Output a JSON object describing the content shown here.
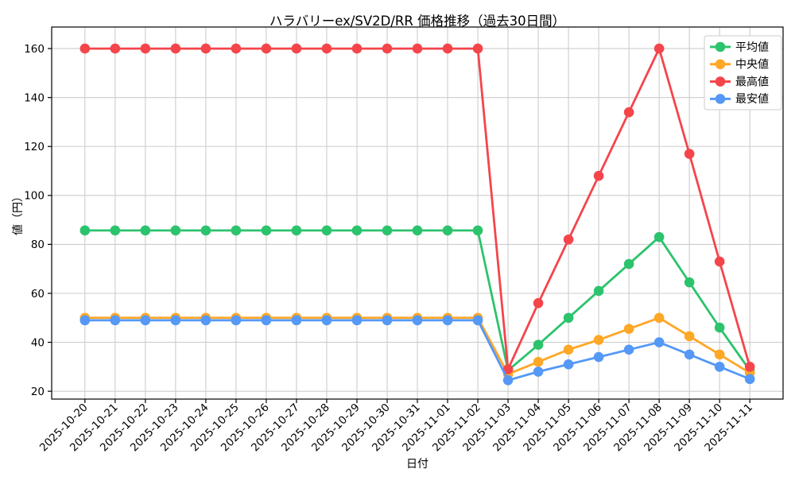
{
  "figure": {
    "title": "ハラバリーex/SV2D/RR 価格推移（過去30日間）",
    "xlabel": "日付",
    "ylabel": "値（円）"
  },
  "chart_data": {
    "type": "line",
    "title": "ハラバリーex/SV2D/RR 価格推移（過去30日間）",
    "xlabel": "日付",
    "ylabel": "値（円）",
    "grid": true,
    "legend_position": "upper right",
    "ylim": [
      16.8,
      168.8
    ],
    "yticks": [
      20,
      40,
      60,
      80,
      100,
      120,
      140,
      160
    ],
    "x": [
      "2025-10-20",
      "2025-10-21",
      "2025-10-22",
      "2025-10-23",
      "2025-10-24",
      "2025-10-25",
      "2025-10-26",
      "2025-10-27",
      "2025-10-28",
      "2025-10-29",
      "2025-10-30",
      "2025-10-31",
      "2025-11-01",
      "2025-11-02",
      "2025-11-03",
      "2025-11-04",
      "2025-11-05",
      "2025-11-06",
      "2025-11-07",
      "2025-11-08",
      "2025-11-09",
      "2025-11-10",
      "2025-11-11"
    ],
    "series": [
      {
        "key": "average",
        "name": "平均値",
        "color": "#2cc36d",
        "values": [
          85.7,
          85.7,
          85.7,
          85.7,
          85.7,
          85.7,
          85.7,
          85.7,
          85.7,
          85.7,
          85.7,
          85.7,
          85.7,
          85.7,
          28.5,
          39,
          50,
          61,
          72,
          83,
          64.5,
          46,
          28.5
        ]
      },
      {
        "key": "median",
        "name": "中央値",
        "color": "#ffa726",
        "values": [
          50,
          50,
          50,
          50,
          50,
          50,
          50,
          50,
          50,
          50,
          50,
          50,
          50,
          50,
          27,
          32,
          37,
          41,
          45.5,
          50,
          42.5,
          35,
          27.5
        ]
      },
      {
        "key": "highest",
        "name": "最高値",
        "color": "#f4454b",
        "values": [
          160,
          160,
          160,
          160,
          160,
          160,
          160,
          160,
          160,
          160,
          160,
          160,
          160,
          160,
          29,
          56,
          82,
          108,
          134,
          160,
          117,
          73,
          30
        ]
      },
      {
        "key": "lowest",
        "name": "最安値",
        "color": "#5598f6",
        "values": [
          49,
          49,
          49,
          49,
          49,
          49,
          49,
          49,
          49,
          49,
          49,
          49,
          49,
          49,
          24.5,
          28,
          31,
          34,
          37,
          40,
          35,
          30,
          25
        ]
      }
    ]
  }
}
